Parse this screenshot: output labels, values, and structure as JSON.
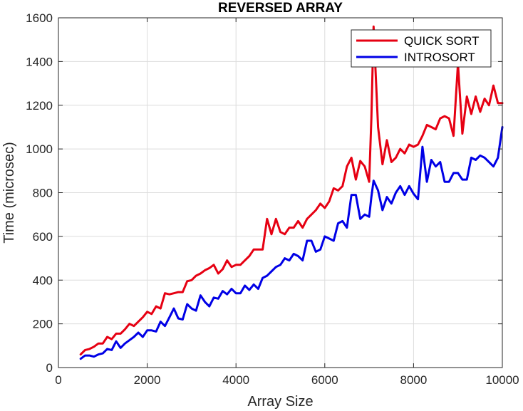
{
  "chart_data": {
    "type": "line",
    "title": "REVERSED ARRAY",
    "xlabel": "Array Size",
    "ylabel": "Time (microsec)",
    "xlim": [
      0,
      10000
    ],
    "ylim": [
      0,
      1600
    ],
    "xticks": [
      0,
      2000,
      4000,
      6000,
      8000,
      10000
    ],
    "yticks": [
      0,
      200,
      400,
      600,
      800,
      1000,
      1200,
      1400,
      1600
    ],
    "grid": true,
    "legend_position": "top-right",
    "x": [
      500,
      600,
      700,
      800,
      900,
      1000,
      1100,
      1200,
      1300,
      1400,
      1500,
      1600,
      1700,
      1800,
      1900,
      2000,
      2100,
      2200,
      2300,
      2400,
      2500,
      2600,
      2700,
      2800,
      2900,
      3000,
      3100,
      3200,
      3300,
      3400,
      3500,
      3600,
      3700,
      3800,
      3900,
      4000,
      4100,
      4200,
      4300,
      4400,
      4500,
      4600,
      4700,
      4800,
      4900,
      5000,
      5100,
      5200,
      5300,
      5400,
      5500,
      5600,
      5700,
      5800,
      5900,
      6000,
      6100,
      6200,
      6300,
      6400,
      6500,
      6600,
      6700,
      6800,
      6900,
      7000,
      7050,
      7100,
      7200,
      7300,
      7400,
      7500,
      7600,
      7700,
      7800,
      7900,
      8000,
      8100,
      8200,
      8300,
      8400,
      8500,
      8600,
      8700,
      8800,
      8900,
      9000,
      9100,
      9200,
      9300,
      9400,
      9500,
      9600,
      9700,
      9800,
      9900,
      10000
    ],
    "series": [
      {
        "name": "QUICK SORT",
        "color": "#e60012",
        "values": [
          60,
          80,
          85,
          95,
          110,
          110,
          140,
          130,
          155,
          155,
          175,
          200,
          190,
          210,
          230,
          255,
          245,
          280,
          270,
          340,
          335,
          340,
          345,
          345,
          395,
          400,
          420,
          430,
          445,
          455,
          470,
          430,
          450,
          490,
          460,
          470,
          470,
          490,
          510,
          540,
          540,
          540,
          680,
          610,
          680,
          620,
          610,
          640,
          640,
          670,
          640,
          680,
          700,
          720,
          750,
          730,
          760,
          820,
          810,
          830,
          920,
          960,
          860,
          945,
          920,
          850,
          1140,
          1560,
          1100,
          930,
          1040,
          940,
          960,
          1000,
          980,
          1020,
          1010,
          1020,
          1060,
          1110,
          1100,
          1090,
          1140,
          1150,
          1140,
          1060,
          1390,
          1070,
          1240,
          1160,
          1240,
          1170,
          1230,
          1200,
          1290,
          1210,
          1210
        ]
      },
      {
        "name": "INTROSORT",
        "color": "#0000e6",
        "values": [
          40,
          55,
          55,
          50,
          60,
          65,
          85,
          80,
          120,
          90,
          110,
          125,
          140,
          160,
          140,
          170,
          170,
          165,
          210,
          190,
          230,
          270,
          225,
          220,
          290,
          270,
          260,
          330,
          300,
          280,
          320,
          315,
          350,
          335,
          360,
          340,
          340,
          375,
          355,
          380,
          360,
          410,
          420,
          440,
          460,
          470,
          500,
          490,
          520,
          510,
          490,
          580,
          580,
          530,
          540,
          600,
          590,
          580,
          660,
          670,
          640,
          790,
          790,
          680,
          700,
          690,
          780,
          855,
          810,
          720,
          780,
          750,
          800,
          830,
          790,
          830,
          795,
          770,
          1010,
          850,
          950,
          920,
          940,
          850,
          850,
          890,
          890,
          860,
          860,
          960,
          950,
          970,
          960,
          940,
          920,
          960,
          1100
        ]
      }
    ]
  }
}
